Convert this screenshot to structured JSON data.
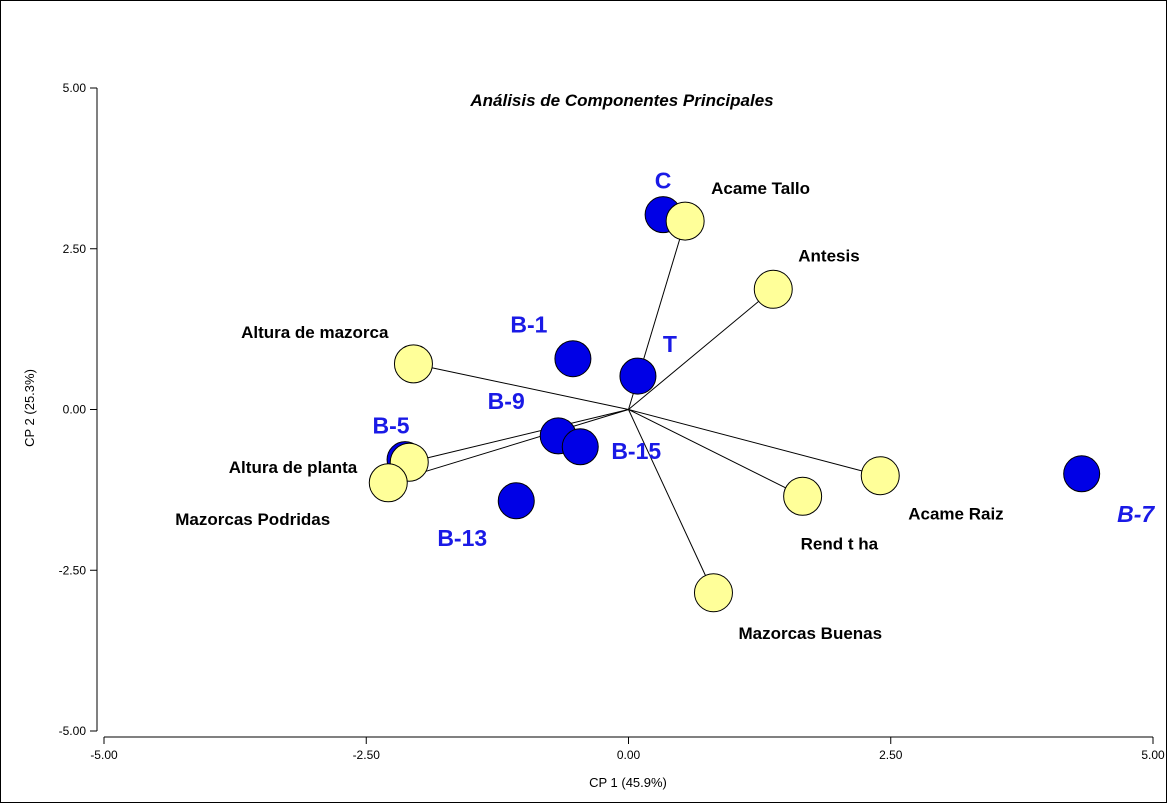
{
  "chart_data": {
    "type": "scatter",
    "title": "Análisis de Componentes Principales",
    "xlabel": "CP 1 (45.9%)",
    "ylabel": "CP 2 (25.3%)",
    "xlim": [
      -5,
      5
    ],
    "ylim": [
      -5,
      5
    ],
    "xticks": [
      "-5.00",
      "-2.50",
      "0.00",
      "2.50",
      "5.00"
    ],
    "yticks": [
      "-5.00",
      "-2.50",
      "0.00",
      "2.50",
      "5.00"
    ],
    "grid": false,
    "colors": {
      "observations": "#0000e6",
      "variables": "#ffff99",
      "labels_obs": "#1a1ae6"
    },
    "observations": [
      {
        "label": "C",
        "x": 0.33,
        "y": 3.03
      },
      {
        "label": "T",
        "x": 0.09,
        "y": 0.52
      },
      {
        "label": "B-1",
        "x": -0.53,
        "y": 0.79
      },
      {
        "label": "B-5",
        "x": -2.13,
        "y": -0.78
      },
      {
        "label": "B-9",
        "x": -0.67,
        "y": -0.41
      },
      {
        "label": "B-13",
        "x": -1.07,
        "y": -1.42
      },
      {
        "label": "B-15",
        "x": -0.46,
        "y": -0.58
      },
      {
        "label": "B-7",
        "x": 4.32,
        "y": -1.0
      }
    ],
    "variables": [
      {
        "label": "Acame Tallo",
        "x": 0.54,
        "y": 2.93
      },
      {
        "label": "Antesis",
        "x": 1.38,
        "y": 1.87
      },
      {
        "label": "Altura de mazorca",
        "x": -2.05,
        "y": 0.71
      },
      {
        "label": "Altura de planta",
        "x": -2.09,
        "y": -0.82
      },
      {
        "label": "Mazorcas Podridas",
        "x": -2.29,
        "y": -1.14
      },
      {
        "label": "Acame Raiz",
        "x": 2.4,
        "y": -1.03
      },
      {
        "label": "Rend  t ha",
        "x": 1.66,
        "y": -1.35
      },
      {
        "label": "Mazorcas Buenas",
        "x": 0.81,
        "y": -2.85
      }
    ]
  }
}
